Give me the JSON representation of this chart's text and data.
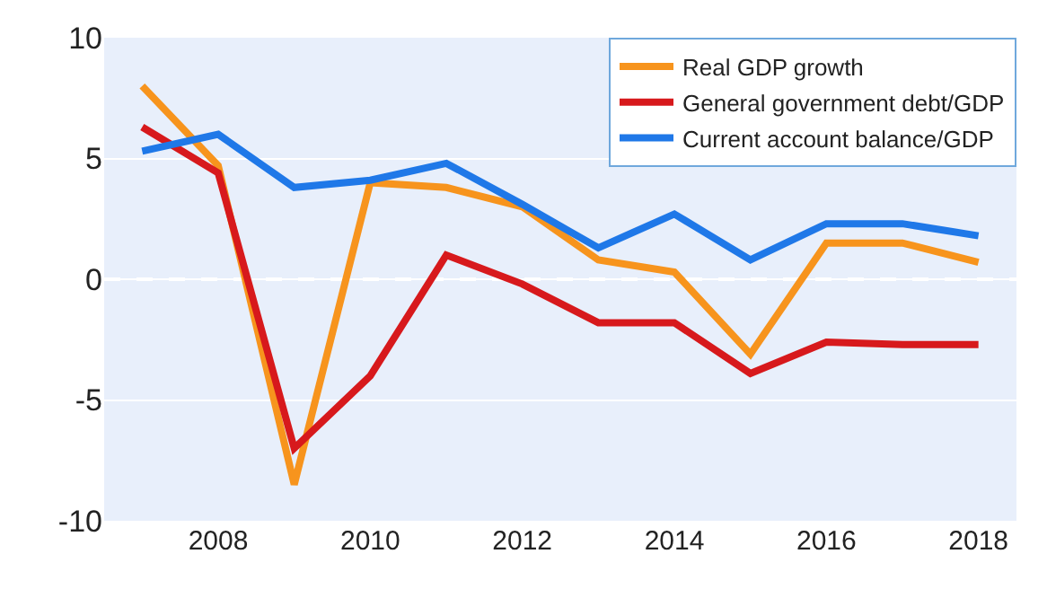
{
  "chart_data": {
    "type": "line",
    "x": [
      2007,
      2008,
      2009,
      2010,
      2011,
      2012,
      2013,
      2014,
      2015,
      2016,
      2017,
      2018
    ],
    "series": [
      {
        "name": "Real GDP growth",
        "color": "#f7941d",
        "values": [
          8.0,
          4.7,
          -8.5,
          4.0,
          3.8,
          3.0,
          0.8,
          0.3,
          -3.1,
          1.5,
          1.5,
          0.7
        ]
      },
      {
        "name": "General government debt/GDP",
        "color": "#d7191c",
        "values": [
          6.3,
          4.4,
          -7.0,
          -4.0,
          1.0,
          -0.2,
          -1.8,
          -1.8,
          -3.9,
          -2.6,
          -2.7,
          -2.7
        ]
      },
      {
        "name": "Current account balance/GDP",
        "color": "#1f78e8",
        "values": [
          5.3,
          6.0,
          3.8,
          4.1,
          4.8,
          3.1,
          1.3,
          2.7,
          0.8,
          2.3,
          2.3,
          1.8
        ]
      }
    ],
    "xlim": [
      2006.5,
      2018.5
    ],
    "xticks": [
      2008,
      2010,
      2012,
      2014,
      2016,
      2018
    ],
    "ylim": [
      -10,
      10
    ],
    "yticks": [
      -10,
      -5,
      0,
      5,
      10
    ],
    "ref_lines": [
      {
        "axis": "y",
        "value": 0,
        "color": "#ffffff",
        "line_style": "dashed"
      }
    ],
    "grid": "y",
    "legend": "top right",
    "marker": "none",
    "line_style": "solid"
  }
}
